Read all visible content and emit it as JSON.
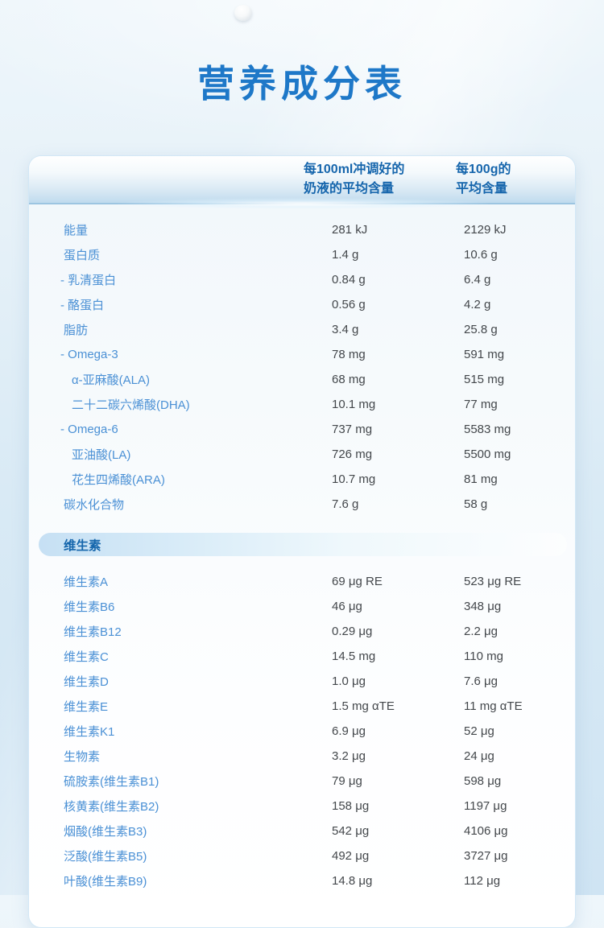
{
  "page": {
    "title": "营养成分表"
  },
  "colors": {
    "title_blue": "#1e78c8",
    "header_blue": "#1565ac",
    "label_blue": "#4a90d5",
    "value_gray": "#43474b",
    "pill_blue": "#c6e0f4"
  },
  "icons": {
    "droplet": "droplet-icon"
  },
  "table": {
    "col_headers": [
      {
        "line1": "每100ml冲调好的",
        "line2": "奶液的平均含量"
      },
      {
        "line1": "每100g的",
        "line2": "平均含量"
      }
    ],
    "rows": [
      {
        "label": "能量",
        "indent": 0,
        "per_100ml": "281 kJ",
        "per_100g": "2129 kJ"
      },
      {
        "label": "蛋白质",
        "indent": 0,
        "per_100ml": "1.4 g",
        "per_100g": "10.6 g"
      },
      {
        "label": "- 乳清蛋白",
        "indent": 1,
        "per_100ml": "0.84 g",
        "per_100g": "6.4 g"
      },
      {
        "label": "- 酪蛋白",
        "indent": 1,
        "per_100ml": "0.56 g",
        "per_100g": "4.2 g"
      },
      {
        "label": "脂肪",
        "indent": 0,
        "per_100ml": "3.4 g",
        "per_100g": "25.8 g"
      },
      {
        "label": "- Omega-3",
        "indent": 1,
        "per_100ml": "78 mg",
        "per_100g": "591 mg"
      },
      {
        "label": "α-亚麻酸(ALA)",
        "indent": 2,
        "per_100ml": "68 mg",
        "per_100g": "515 mg"
      },
      {
        "label": "二十二碳六烯酸(DHA)",
        "indent": 2,
        "per_100ml": "10.1 mg",
        "per_100g": "77 mg"
      },
      {
        "label": "- Omega-6",
        "indent": 1,
        "per_100ml": "737 mg",
        "per_100g": "5583 mg"
      },
      {
        "label": "亚油酸(LA)",
        "indent": 2,
        "per_100ml": "726 mg",
        "per_100g": "5500 mg"
      },
      {
        "label": "花生四烯酸(ARA)",
        "indent": 2,
        "per_100ml": "10.7 mg",
        "per_100g": "81 mg"
      },
      {
        "label": "碳水化合物",
        "indent": 0,
        "per_100ml": "7.6 g",
        "per_100g": "58 g"
      }
    ],
    "section_label": "维生素",
    "vitamin_rows": [
      {
        "label": "维生素A",
        "indent": 0,
        "per_100ml": "69 μg RE",
        "per_100g": "523 μg RE"
      },
      {
        "label": "维生素B6",
        "indent": 0,
        "per_100ml": "46 μg",
        "per_100g": "348 μg"
      },
      {
        "label": "维生素B12",
        "indent": 0,
        "per_100ml": "0.29 μg",
        "per_100g": "2.2 μg"
      },
      {
        "label": "维生素C",
        "indent": 0,
        "per_100ml": "14.5 mg",
        "per_100g": "110 mg"
      },
      {
        "label": "维生素D",
        "indent": 0,
        "per_100ml": "1.0 μg",
        "per_100g": "7.6 μg"
      },
      {
        "label": "维生素E",
        "indent": 0,
        "per_100ml": "1.5 mg αTE",
        "per_100g": "11 mg αTE"
      },
      {
        "label": "维生素K1",
        "indent": 0,
        "per_100ml": "6.9 μg",
        "per_100g": "52 μg"
      },
      {
        "label": "生物素",
        "indent": 0,
        "per_100ml": "3.2 μg",
        "per_100g": "24 μg"
      },
      {
        "label": "硫胺素(维生素B1)",
        "indent": 0,
        "per_100ml": "79 μg",
        "per_100g": "598 μg"
      },
      {
        "label": "核黄素(维生素B2)",
        "indent": 0,
        "per_100ml": "158 μg",
        "per_100g": "1197 μg"
      },
      {
        "label": "烟酸(维生素B3)",
        "indent": 0,
        "per_100ml": "542 μg",
        "per_100g": "4106 μg"
      },
      {
        "label": "泛酸(维生素B5)",
        "indent": 0,
        "per_100ml": "492 μg",
        "per_100g": "3727 μg"
      },
      {
        "label": "叶酸(维生素B9)",
        "indent": 0,
        "per_100ml": "14.8 μg",
        "per_100g": "112 μg"
      }
    ]
  }
}
